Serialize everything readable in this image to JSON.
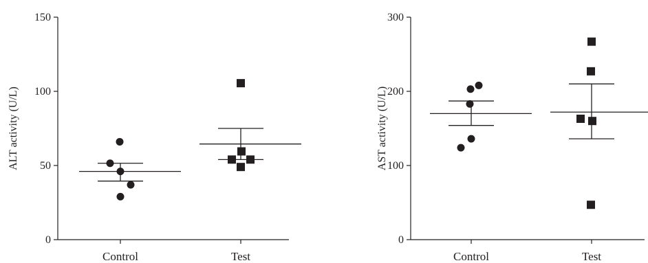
{
  "chart_data": [
    {
      "type": "scatter",
      "ylabel": "ALT activity (U/L)",
      "xlabel": "",
      "categories": [
        "Control",
        "Test"
      ],
      "ylim": [
        0,
        150
      ],
      "yticks": [
        "0",
        "50",
        "100",
        "150"
      ],
      "grid": false,
      "series": [
        {
          "category": "Control",
          "marker": "circle",
          "values": [
            66,
            51.5,
            46,
            37,
            29
          ],
          "mean": 46,
          "sem_upper": 51.5,
          "sem_lower": 39.5
        },
        {
          "category": "Test",
          "marker": "square",
          "values": [
            105.5,
            59.5,
            54,
            54,
            49
          ],
          "mean": 64.5,
          "sem_upper": 75,
          "sem_lower": 54
        }
      ]
    },
    {
      "type": "scatter",
      "ylabel": "AST activity (U/L)",
      "xlabel": "",
      "categories": [
        "Control",
        "Test"
      ],
      "ylim": [
        0,
        300
      ],
      "yticks": [
        "0",
        "100",
        "200",
        "300"
      ],
      "grid": false,
      "series": [
        {
          "category": "Control",
          "marker": "circle",
          "values": [
            208,
            203,
            183,
            136,
            124
          ],
          "mean": 170,
          "sem_upper": 187,
          "sem_lower": 154
        },
        {
          "category": "Test",
          "marker": "square",
          "values": [
            267,
            227,
            163,
            160,
            47
          ],
          "mean": 172,
          "sem_upper": 210,
          "sem_lower": 136
        }
      ]
    }
  ]
}
